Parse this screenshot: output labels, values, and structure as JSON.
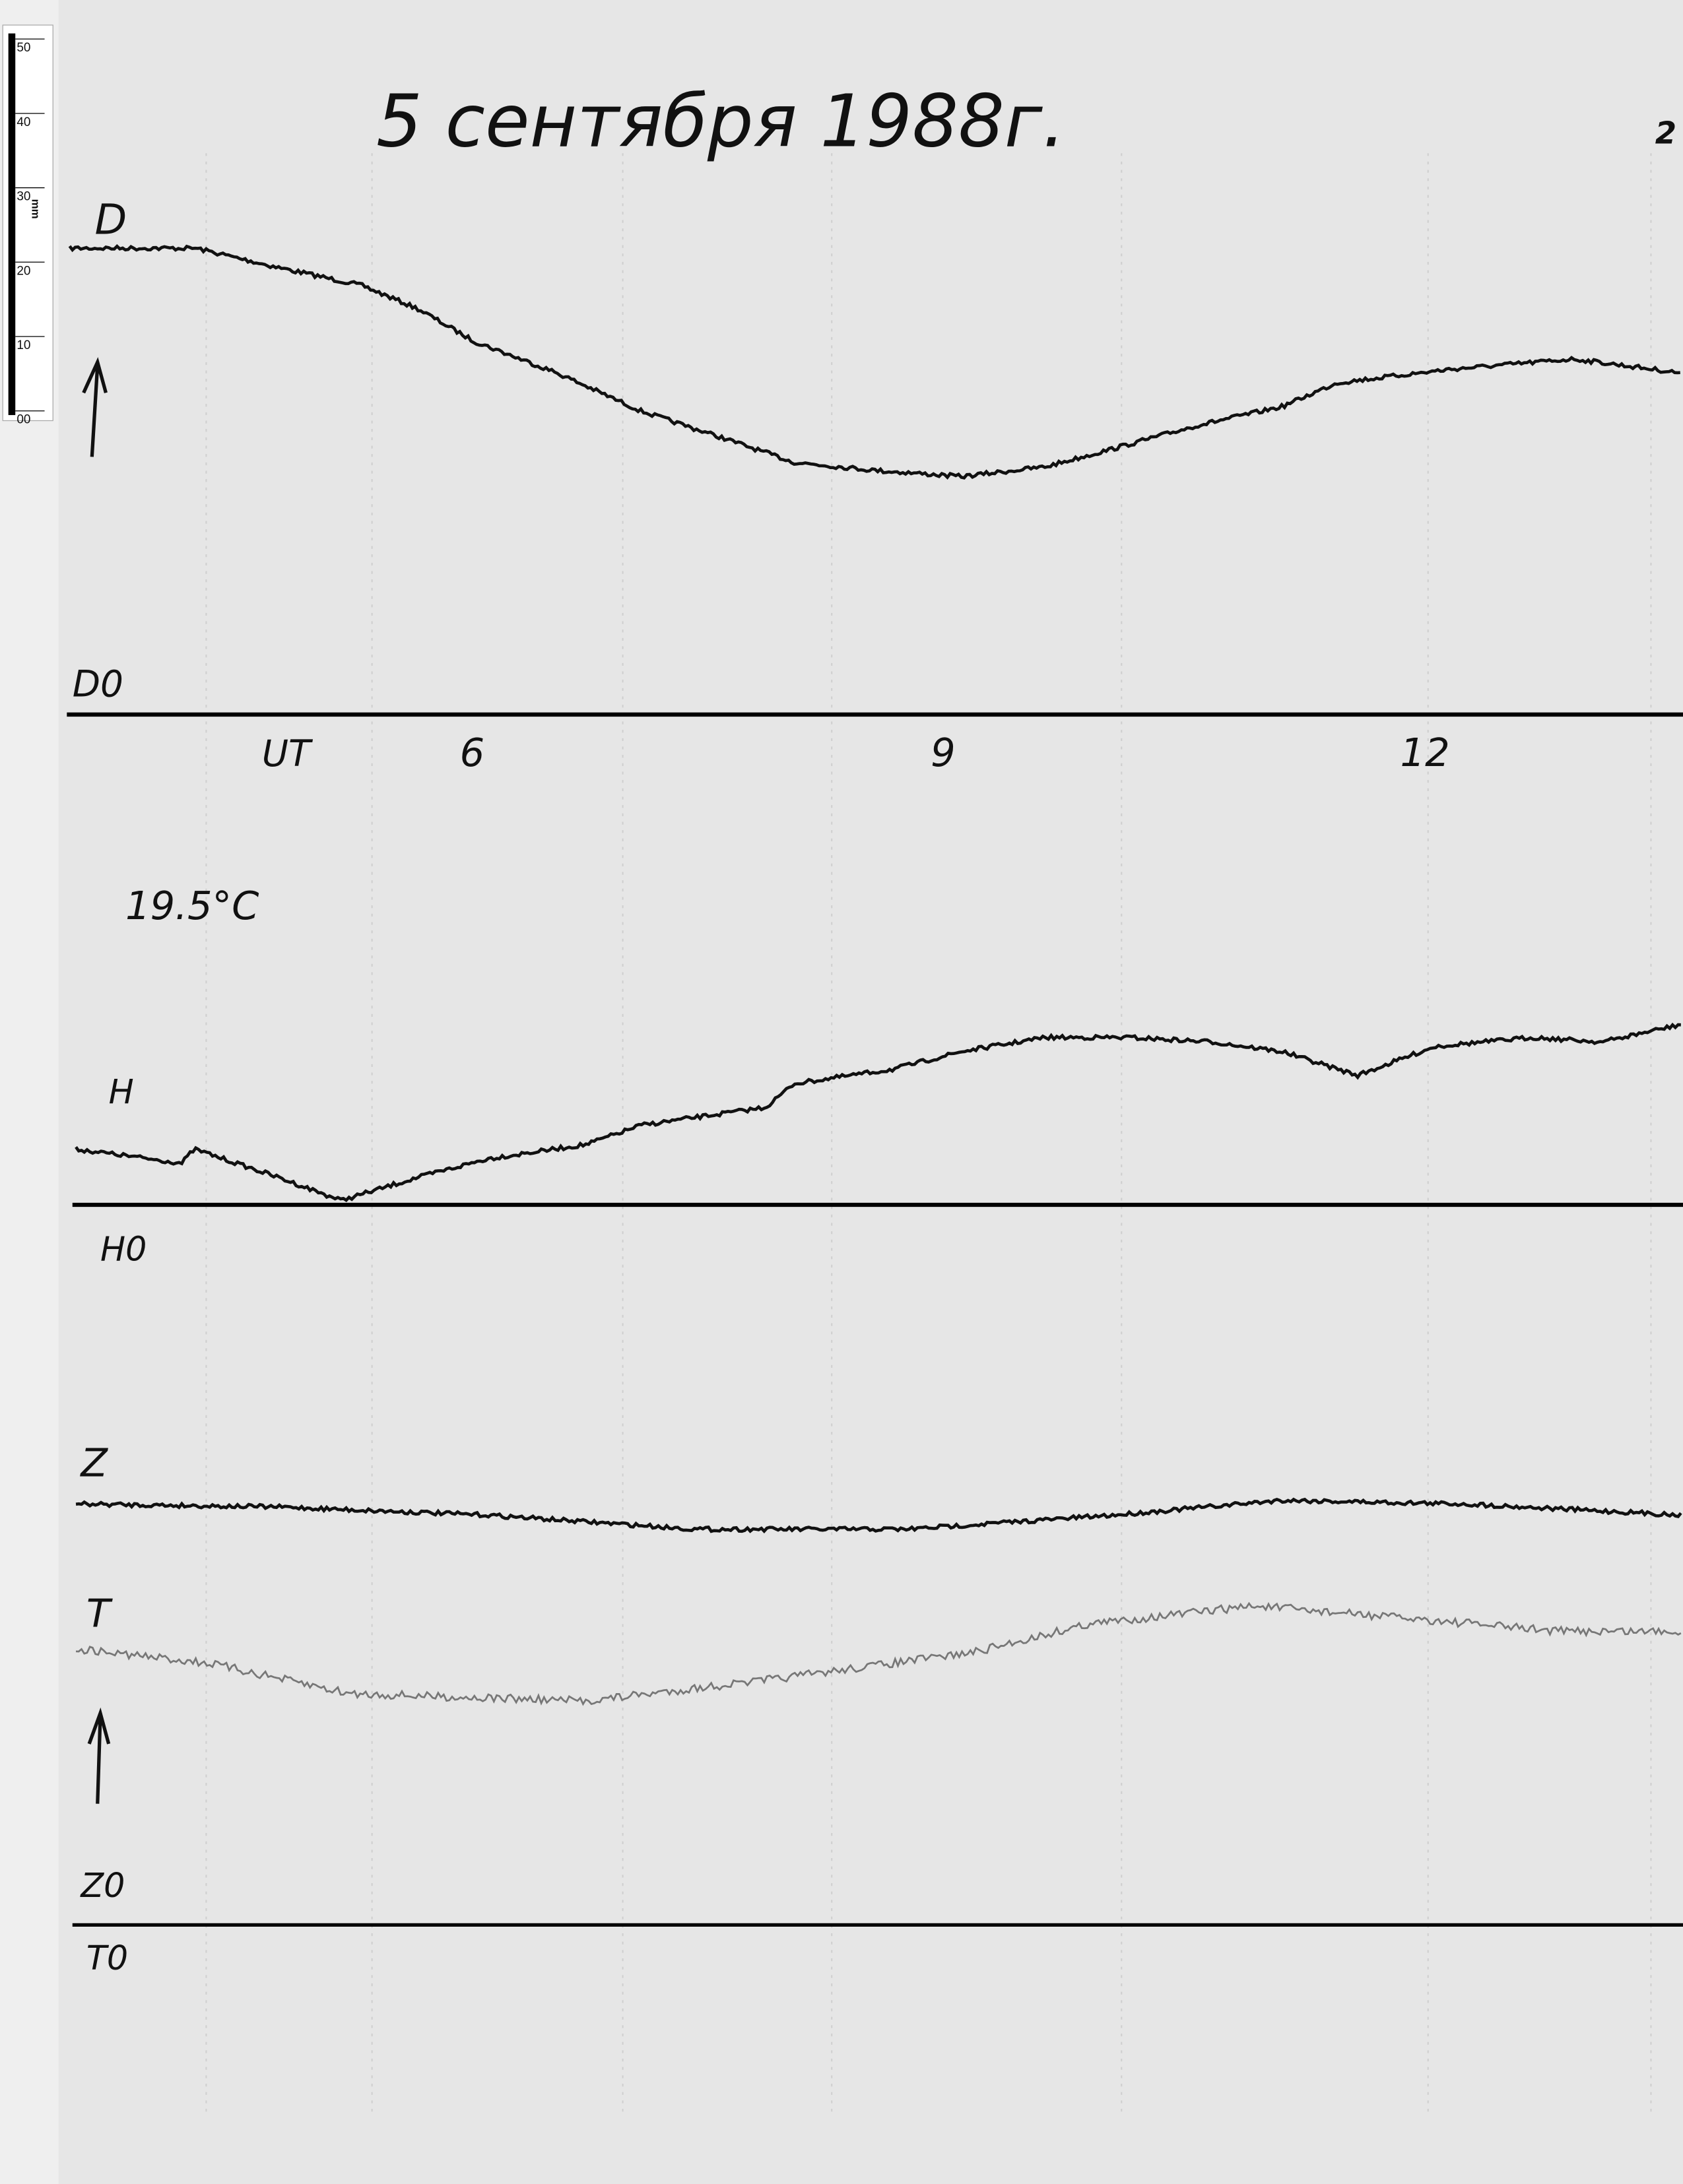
{
  "title": "5 сентября 1988г.",
  "page_mark": "2",
  "temperature": "19.5°C",
  "ruler": {
    "unit": "mm",
    "labels": [
      "50",
      "40",
      "30",
      "20",
      "10",
      "00"
    ]
  },
  "chart_data": {
    "type": "line",
    "title": "5 сентября 1988г.",
    "xlabel": "UT",
    "x_ticks": [
      {
        "hour": 6,
        "label": "6"
      },
      {
        "hour": 9,
        "label": "9"
      },
      {
        "hour": 12,
        "label": "12"
      }
    ],
    "xlim_hours": [
      3.44,
      13.66
    ],
    "y_units": "mm above baseline",
    "grid": false,
    "series": [
      {
        "name": "D",
        "baseline_label": "D0",
        "color": "#111111",
        "hours": [
          3.44,
          4.24,
          4.76,
          5.29,
          5.65,
          6.0,
          6.53,
          7.06,
          7.59,
          8.03,
          8.56,
          9.09,
          9.62,
          10.06,
          10.59,
          11.12,
          11.47,
          12.18,
          12.97,
          13.66
        ],
        "values": [
          62.7,
          62.7,
          60.1,
          57.7,
          54.5,
          50.2,
          45.9,
          40.8,
          37.1,
          33.9,
          32.8,
          32.0,
          33.3,
          35.8,
          38.9,
          41.4,
          44.6,
          46.4,
          47.8,
          45.9
        ]
      },
      {
        "name": "H",
        "baseline_label": "H0",
        "color": "#111111",
        "hours": [
          3.48,
          4.15,
          4.23,
          4.76,
          5.16,
          5.65,
          6.09,
          6.71,
          7.06,
          7.85,
          8.03,
          8.65,
          9.09,
          9.62,
          10.15,
          10.68,
          11.12,
          11.6,
          12.09,
          12.71,
          13.15,
          13.66
        ],
        "values": [
          7.5,
          5.6,
          7.5,
          3.7,
          0.6,
          3.7,
          6.2,
          8.1,
          10.7,
          13.1,
          16.3,
          18.2,
          20.6,
          22.5,
          22.5,
          21.9,
          20.6,
          17.4,
          21.3,
          22.5,
          21.9,
          24.3
        ]
      },
      {
        "name": "Z",
        "baseline_label": "Z0",
        "color": "#111111",
        "hours": [
          3.48,
          4.76,
          6.09,
          7.41,
          8.74,
          10.06,
          11.12,
          12.27,
          13.66
        ],
        "values": [
          56.6,
          56.2,
          55.1,
          53.2,
          53.2,
          55.1,
          57.1,
          56.6,
          55.1
        ]
      },
      {
        "name": "T",
        "baseline_label": "T0",
        "color": "#777777",
        "hours": [
          3.48,
          4.32,
          5.21,
          6.71,
          7.85,
          9.18,
          9.88,
          10.94,
          11.82,
          12.88,
          13.66
        ],
        "values": [
          37.1,
          35.2,
          31.1,
          30.1,
          32.9,
          36.7,
          40.4,
          42.9,
          41.4,
          39.5,
          39.5
        ]
      }
    ]
  }
}
